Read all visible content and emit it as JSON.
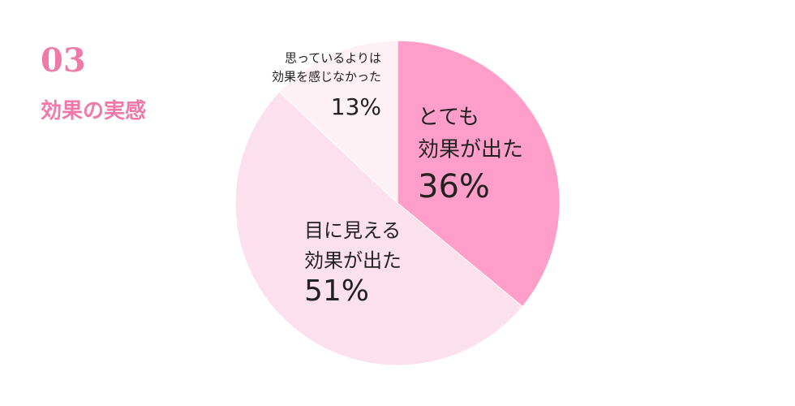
{
  "chart_data": {
    "type": "pie",
    "section": "03",
    "title": "効果の実感",
    "categories": [
      [
        "とても",
        "効果が出た"
      ],
      [
        "目に見える",
        "効果が出た"
      ],
      [
        "思っているよりは",
        "効果を感じなかった"
      ]
    ],
    "values": [
      36,
      51,
      13
    ],
    "value_labels": [
      "36%",
      "51%",
      "13%"
    ],
    "colors": [
      "#ff9fc9",
      "#fde0ee",
      "#fef1f6"
    ]
  }
}
